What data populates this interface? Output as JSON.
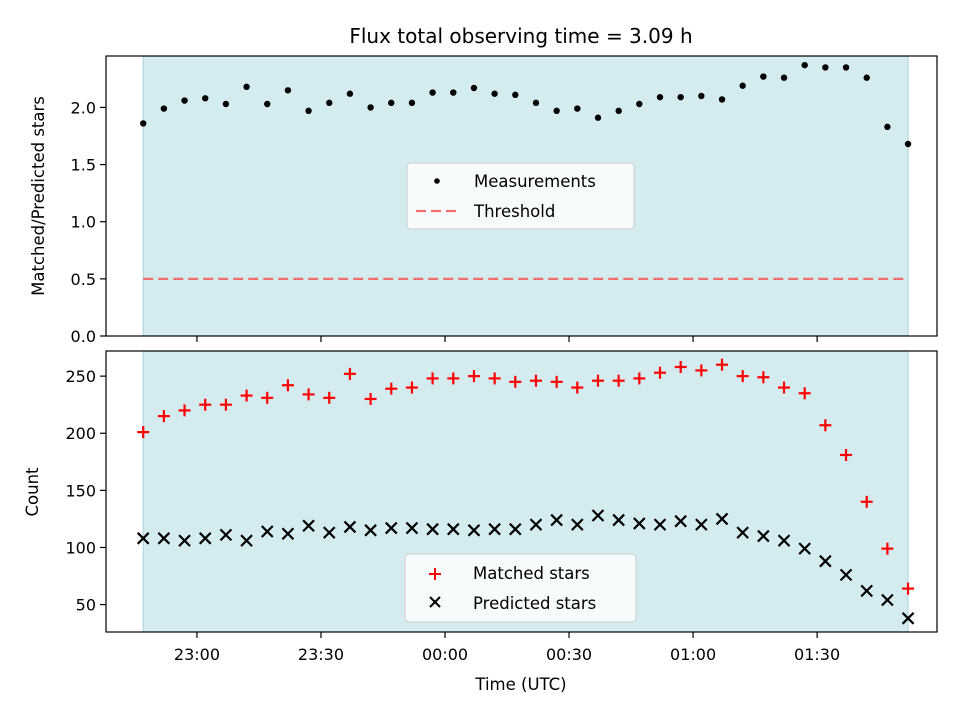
{
  "chart_data": [
    {
      "type": "scatter",
      "title": "Flux total observing time = 3.09 h",
      "xlabel": "",
      "ylabel": "Matched/Predicted stars",
      "xlim": [
        "22:38",
        "01:59"
      ],
      "ylim": [
        0,
        2.45
      ],
      "yticks": [
        0.0,
        0.5,
        1.0,
        1.5,
        2.0
      ],
      "ytick_labels": [
        "0.0",
        "0.5",
        "1.0",
        "1.5",
        "2.0"
      ],
      "grid": false,
      "shaded_region": {
        "start": "22:47",
        "end": "01:52",
        "color": "#d4ebf0"
      },
      "legend_position": "center",
      "x": [
        "22:47",
        "22:52",
        "22:57",
        "23:02",
        "23:07",
        "23:12",
        "23:17",
        "23:22",
        "23:27",
        "23:32",
        "23:37",
        "23:42",
        "23:47",
        "23:52",
        "23:57",
        "00:02",
        "00:07",
        "00:12",
        "00:17",
        "00:22",
        "00:27",
        "00:32",
        "00:37",
        "00:42",
        "00:47",
        "00:52",
        "00:57",
        "01:02",
        "01:07",
        "01:12",
        "01:17",
        "01:22",
        "01:27",
        "01:32",
        "01:37",
        "01:42",
        "01:47",
        "01:52"
      ],
      "series": [
        {
          "name": "Measurements",
          "marker": "dot",
          "color": "#000000",
          "values": [
            1.86,
            1.99,
            2.06,
            2.08,
            2.03,
            2.18,
            2.03,
            2.15,
            1.97,
            2.04,
            2.12,
            2.0,
            2.04,
            2.04,
            2.13,
            2.13,
            2.17,
            2.12,
            2.11,
            2.04,
            1.97,
            1.99,
            1.91,
            1.97,
            2.03,
            2.09,
            2.09,
            2.1,
            2.07,
            2.19,
            2.27,
            2.26,
            2.37,
            2.35,
            2.35,
            2.26,
            1.83,
            1.68
          ]
        },
        {
          "name": "Threshold",
          "marker": "dashed-line",
          "color": "#f08080",
          "values": [
            0.5,
            0.5,
            0.5,
            0.5,
            0.5,
            0.5,
            0.5,
            0.5,
            0.5,
            0.5,
            0.5,
            0.5,
            0.5,
            0.5,
            0.5,
            0.5,
            0.5,
            0.5,
            0.5,
            0.5,
            0.5,
            0.5,
            0.5,
            0.5,
            0.5,
            0.5,
            0.5,
            0.5,
            0.5,
            0.5,
            0.5,
            0.5,
            0.5,
            0.5,
            0.5,
            0.5,
            0.5,
            0.5
          ]
        }
      ]
    },
    {
      "type": "scatter",
      "title": "",
      "xlabel": "Time (UTC)",
      "ylabel": "Count",
      "xlim": [
        "22:38",
        "01:59"
      ],
      "ylim": [
        26,
        272
      ],
      "xticks": [
        "23:00",
        "23:30",
        "00:00",
        "00:30",
        "01:00",
        "01:30"
      ],
      "xtick_labels": [
        "23:00",
        "23:30",
        "00:00",
        "00:30",
        "01:00",
        "01:30"
      ],
      "yticks": [
        50,
        100,
        150,
        200,
        250
      ],
      "ytick_labels": [
        "50",
        "100",
        "150",
        "200",
        "250"
      ],
      "grid": false,
      "shaded_region": {
        "start": "22:47",
        "end": "01:52",
        "color": "#d4ebf0"
      },
      "legend_position": "bottom-center",
      "x": [
        "22:47",
        "22:52",
        "22:57",
        "23:02",
        "23:07",
        "23:12",
        "23:17",
        "23:22",
        "23:27",
        "23:32",
        "23:37",
        "23:42",
        "23:47",
        "23:52",
        "23:57",
        "00:02",
        "00:07",
        "00:12",
        "00:17",
        "00:22",
        "00:27",
        "00:32",
        "00:37",
        "00:42",
        "00:47",
        "00:52",
        "00:57",
        "01:02",
        "01:07",
        "01:12",
        "01:17",
        "01:22",
        "01:27",
        "01:32",
        "01:37",
        "01:42",
        "01:47",
        "01:52"
      ],
      "series": [
        {
          "name": "Matched stars",
          "marker": "plus",
          "color": "#ff0000",
          "values": [
            201,
            215,
            220,
            225,
            225,
            233,
            231,
            242,
            234,
            231,
            252,
            230,
            239,
            240,
            248,
            248,
            250,
            248,
            245,
            246,
            245,
            240,
            246,
            246,
            248,
            253,
            258,
            255,
            260,
            250,
            249,
            240,
            235,
            207,
            181,
            140,
            99,
            64
          ]
        },
        {
          "name": "Predicted stars",
          "marker": "x",
          "color": "#000000",
          "values": [
            108,
            108,
            106,
            108,
            111,
            106,
            114,
            112,
            119,
            113,
            118,
            115,
            117,
            117,
            116,
            116,
            115,
            116,
            116,
            120,
            124,
            120,
            128,
            124,
            121,
            120,
            123,
            120,
            125,
            113,
            110,
            106,
            99,
            88,
            76,
            62,
            54,
            38
          ]
        }
      ]
    }
  ]
}
